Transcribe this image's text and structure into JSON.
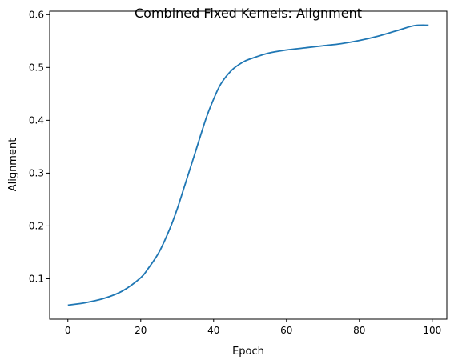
{
  "chart_data": {
    "type": "line",
    "title": "Combined Fixed Kernels: Alignment",
    "xlabel": "Epoch",
    "ylabel": "Alignment",
    "xlim": [
      -5,
      104
    ],
    "ylim": [
      0.0235,
      0.6065
    ],
    "xticks": [
      0,
      20,
      40,
      60,
      80,
      100
    ],
    "yticks": [
      0.1,
      0.2,
      0.3,
      0.4,
      0.5,
      0.6
    ],
    "xtick_labels": [
      "0",
      "20",
      "40",
      "60",
      "80",
      "100"
    ],
    "ytick_labels": [
      "0.1",
      "0.2",
      "0.3",
      "0.4",
      "0.5",
      "0.6"
    ],
    "grid": false,
    "series": [
      {
        "color": "#1f77b4",
        "x": [
          0,
          5,
          10,
          15,
          20,
          22,
          25,
          28,
          30,
          32,
          35,
          38,
          40,
          42,
          45,
          48,
          50,
          55,
          60,
          65,
          70,
          75,
          80,
          85,
          90,
          95,
          99
        ],
        "y": [
          0.05,
          0.055,
          0.063,
          0.077,
          0.102,
          0.119,
          0.15,
          0.195,
          0.232,
          0.275,
          0.34,
          0.405,
          0.44,
          0.469,
          0.495,
          0.51,
          0.516,
          0.527,
          0.533,
          0.537,
          0.541,
          0.545,
          0.551,
          0.559,
          0.569,
          0.579,
          0.58
        ]
      }
    ]
  }
}
